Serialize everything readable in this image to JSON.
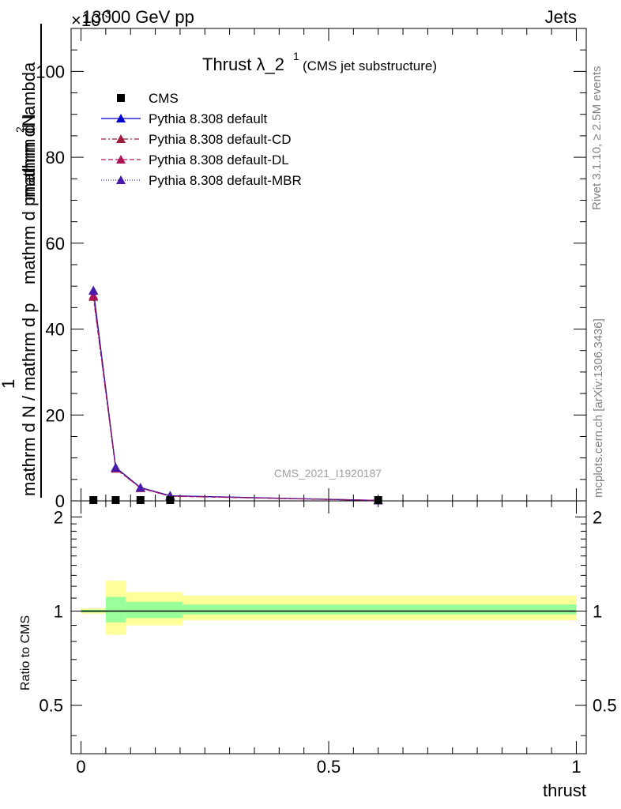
{
  "header": {
    "left": "13000 GeV pp",
    "right": "Jets",
    "exponent": "×10",
    "exponent_power": "-3"
  },
  "title": {
    "main": "Thrust λ_2",
    "superscript": "1",
    "sub": "(CMS jet substructure)"
  },
  "side_labels": {
    "rivet": "Rivet 3.1.10, ≥ 2.5M events",
    "mcplots": "mcplots.cern.ch [arXiv:1306.3436]"
  },
  "watermark": "CMS_2021_I1920187",
  "legend": [
    {
      "label": "CMS",
      "marker": "square",
      "color": "#000000",
      "line": "none"
    },
    {
      "label": "Pythia 8.308 default",
      "marker": "triangle",
      "color": "#0000cc",
      "line": "solid"
    },
    {
      "label": "Pythia 8.308 default-CD",
      "marker": "triangle",
      "color": "#9b1c3c",
      "line": "dashdot"
    },
    {
      "label": "Pythia 8.308 default-DL",
      "marker": "triangle",
      "color": "#b0135a",
      "line": "dashed"
    },
    {
      "label": "Pythia 8.308 default-MBR",
      "marker": "triangle",
      "color": "#4b1aa8",
      "line": "dotted"
    }
  ],
  "chart_data": [
    {
      "type": "line",
      "panel": "main",
      "ylabel": "1 / mathrm d N / mathrm d p_T mathrm d^2N / mathrm d p_T mathrm d lambda",
      "ylim": [
        0,
        110
      ],
      "xlim": [
        -0.02,
        1.02
      ],
      "y_ticks": [
        0,
        20,
        40,
        60,
        80,
        100
      ],
      "y_minor_step": 5,
      "cms": {
        "name": "CMS",
        "x": [
          0.025,
          0.07,
          0.12,
          0.18,
          0.6
        ],
        "y": [
          0.0,
          0.0,
          0.0,
          0.0,
          0.0
        ]
      },
      "series": [
        {
          "name": "Pythia 8.308 default",
          "color": "#0000cc",
          "dash": "none",
          "x": [
            0.025,
            0.07,
            0.12,
            0.18,
            0.6
          ],
          "y": [
            49.0,
            7.8,
            3.1,
            1.2,
            0.1
          ]
        },
        {
          "name": "Pythia 8.308 default-CD",
          "color": "#9b1c3c",
          "dash": "6,3,2,3",
          "x": [
            0.025,
            0.07,
            0.12,
            0.18,
            0.6
          ],
          "y": [
            47.5,
            7.5,
            3.0,
            1.1,
            0.1
          ]
        },
        {
          "name": "Pythia 8.308 default-DL",
          "color": "#b0135a",
          "dash": "6,3",
          "x": [
            0.025,
            0.07,
            0.12,
            0.18,
            0.6
          ],
          "y": [
            47.8,
            7.6,
            3.0,
            1.1,
            0.1
          ]
        },
        {
          "name": "Pythia 8.308 default-MBR",
          "color": "#4b1aa8",
          "dash": "1,2",
          "x": [
            0.025,
            0.07,
            0.12,
            0.18,
            0.6
          ],
          "y": [
            48.9,
            7.7,
            3.1,
            1.2,
            0.1
          ]
        }
      ]
    },
    {
      "type": "area",
      "panel": "ratio",
      "ylabel": "Ratio to CMS",
      "xlabel": "thrust",
      "xlim": [
        -0.02,
        1.02
      ],
      "ylim": [
        0.35,
        2.25
      ],
      "y_ticks": [
        0.5,
        1,
        2
      ],
      "x_ticks": [
        0,
        0.5,
        1
      ],
      "reference_line": 1,
      "bands": [
        {
          "x_low": 0.0,
          "x_high": 0.05,
          "inner": [
            0.99,
            1.01
          ],
          "outer": [
            0.98,
            1.02
          ]
        },
        {
          "x_low": 0.05,
          "x_high": 0.09,
          "inner": [
            0.92,
            1.11
          ],
          "outer": [
            0.84,
            1.25
          ]
        },
        {
          "x_low": 0.09,
          "x_high": 0.205,
          "inner": [
            0.95,
            1.07
          ],
          "outer": [
            0.9,
            1.15
          ]
        },
        {
          "x_low": 0.205,
          "x_high": 1.0,
          "inner": [
            0.975,
            1.05
          ],
          "outer": [
            0.935,
            1.12
          ]
        }
      ]
    }
  ]
}
